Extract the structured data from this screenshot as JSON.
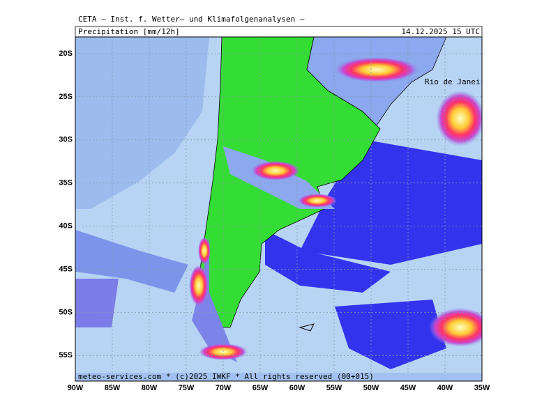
{
  "header": {
    "title": "CETA — Inst. f. Wetter— und Klimafolgenanalysen —",
    "variable": "Precipitation [mm/12h]",
    "valid_time": "14.12.2025 15 UTC"
  },
  "map": {
    "longitude_labels": [
      "90W",
      "85W",
      "80W",
      "75W",
      "70W",
      "65W",
      "60W",
      "55W",
      "50W",
      "45W",
      "40W",
      "35W"
    ],
    "latitude_labels": [
      "20S",
      "25S",
      "30S",
      "35S",
      "40S",
      "45S",
      "50S",
      "55S"
    ],
    "place_label": "Rio de Janeiro"
  },
  "footer": {
    "credit": "meteo-services.com * (c)2025 IWKF * All rights reserved (00+015)"
  }
}
